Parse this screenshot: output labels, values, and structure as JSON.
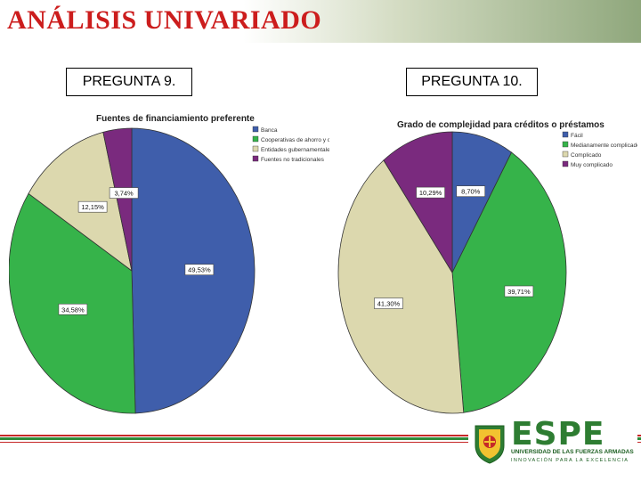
{
  "slide": {
    "title": "ANÁLISIS UNIVARIADO"
  },
  "questions": {
    "q9": "PREGUNTA 9.",
    "q10": "PREGUNTA 10."
  },
  "chart_data": [
    {
      "type": "pie",
      "title": "Fuentes de financiamiento preferente",
      "categories": [
        "Banca",
        "Cooperativas de ahorro y crédito",
        "Entidades gubernamentales",
        "Fuentes no tradicionales"
      ],
      "values": [
        49.53,
        34.58,
        12.15,
        3.74
      ],
      "labels": [
        "49,53%",
        "34,58%",
        "12,15%",
        "3,74%"
      ],
      "colors": [
        "#3f5eab",
        "#36b34a",
        "#dcd8ae",
        "#7a2a7e"
      ],
      "legend": "top-right"
    },
    {
      "type": "pie",
      "title": "Grado de complejidad para créditos o préstamos",
      "categories": [
        "Fácil",
        "Medianamente complicado",
        "Complicado",
        "Muy complicado"
      ],
      "values": [
        8.7,
        39.71,
        41.3,
        10.29
      ],
      "labels": [
        "8,70%",
        "39,71%",
        "41,30%",
        "10,29%"
      ],
      "colors": [
        "#3f5eab",
        "#36b34a",
        "#dcd8ae",
        "#7a2a7e"
      ],
      "legend": "top-right"
    }
  ],
  "logo": {
    "name": "ESPE",
    "line1": "UNIVERSIDAD DE LAS FUERZAS ARMADAS",
    "line2": "INNOVACIÓN PARA LA EXCELENCIA",
    "color": "#2e7d32"
  }
}
